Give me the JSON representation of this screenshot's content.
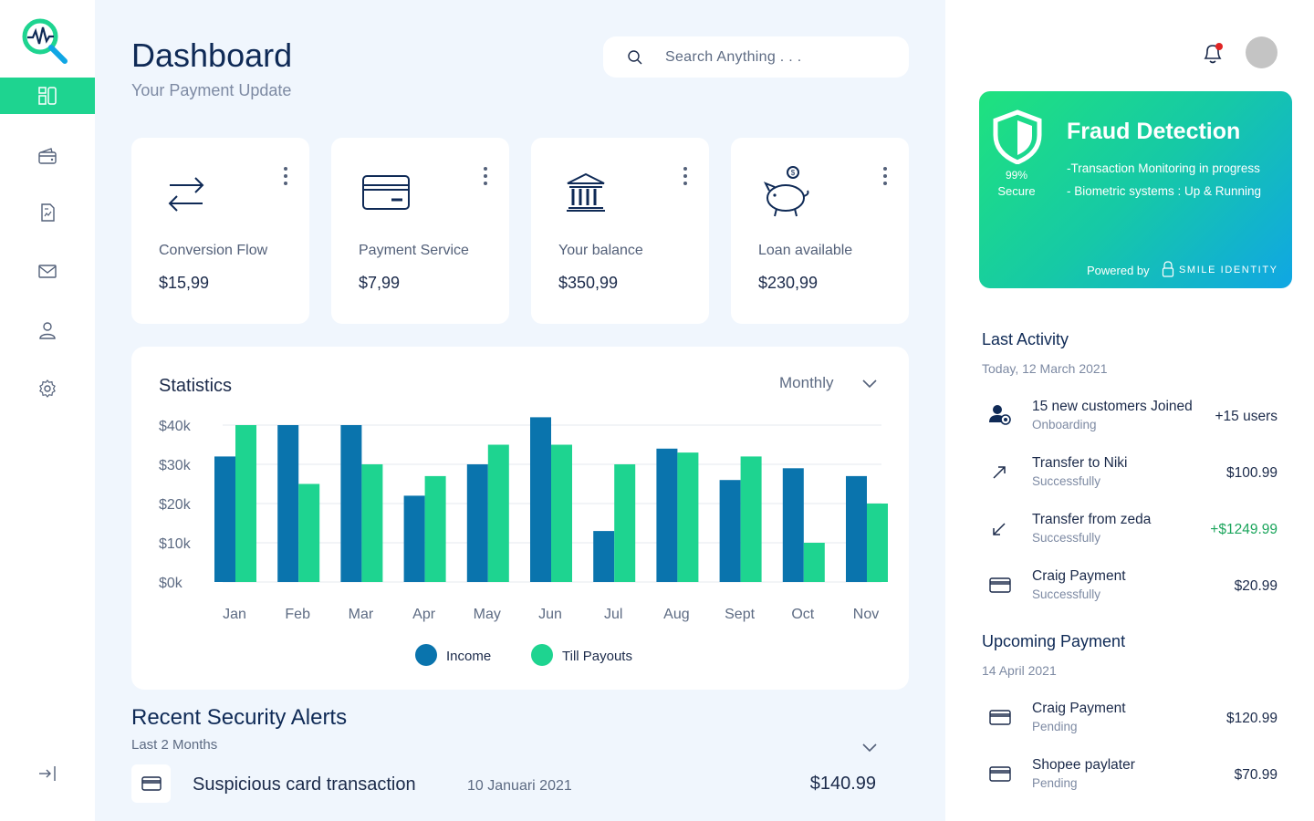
{
  "app": {
    "logo_icon": "pulse-magnifier-logo",
    "accent": "#1ed490",
    "primary_bar": "#0a74ad",
    "secondary_bar": "#1ed490"
  },
  "sidebar": {
    "items": [
      {
        "name": "dashboard",
        "icon": "dashboard-icon",
        "active": true
      },
      {
        "name": "wallet",
        "icon": "wallet-icon",
        "active": false
      },
      {
        "name": "reports",
        "icon": "document-icon",
        "active": false
      },
      {
        "name": "messages",
        "icon": "mail-icon",
        "active": false
      },
      {
        "name": "profile",
        "icon": "user-icon",
        "active": false
      },
      {
        "name": "settings",
        "icon": "gear-icon",
        "active": false
      }
    ],
    "logout_icon": "logout-icon"
  },
  "header": {
    "title": "Dashboard",
    "subtitle": "Your Payment Update",
    "search_placeholder": "Search Anything . . ."
  },
  "cards": [
    {
      "label": "Conversion Flow",
      "value": "$15,99",
      "icon": "transfer-arrows-icon"
    },
    {
      "label": "Payment Service",
      "value": "$7,99",
      "icon": "credit-card-icon"
    },
    {
      "label": "Your balance",
      "value": "$350,99",
      "icon": "bank-icon"
    },
    {
      "label": "Loan available",
      "value": "$230,99",
      "icon": "piggy-bank-icon"
    }
  ],
  "statistics": {
    "title": "Statistics",
    "period": "Monthly"
  },
  "chart_data": {
    "type": "bar",
    "categories": [
      "Jan",
      "Feb",
      "Mar",
      "Apr",
      "May",
      "Jun",
      "Jul",
      "Aug",
      "Sept",
      "Oct",
      "Nov"
    ],
    "series": [
      {
        "name": "Income",
        "color": "#0a74ad",
        "values": [
          32,
          40,
          40,
          22,
          30,
          42,
          13,
          34,
          26,
          29,
          27
        ]
      },
      {
        "name": "Till Payouts",
        "color": "#1ed490",
        "values": [
          40,
          25,
          30,
          27,
          35,
          35,
          30,
          33,
          32,
          10,
          20
        ]
      }
    ],
    "y_ticks": [
      "$0k",
      "$10k",
      "$20k",
      "$30k",
      "$40k"
    ],
    "ylim": [
      0,
      40
    ],
    "grid": true,
    "legend": "bottom-center",
    "title": "",
    "xlabel": "",
    "ylabel": ""
  },
  "alerts": {
    "title": "Recent Security Alerts",
    "subtitle": "Last 2 Months",
    "items": [
      {
        "name": "Suspicious card transaction",
        "date": "10 Januari 2021",
        "amount": "$140.99",
        "icon": "credit-card-icon"
      }
    ]
  },
  "fraud": {
    "title": "Fraud Detection",
    "percent": "99%",
    "percent_label": "Secure",
    "line1": "-Transaction Monitoring in progress",
    "line2": "- Biometric systems : Up & Running",
    "powered_by": "Powered by",
    "brand": "SMILE IDENTITY"
  },
  "last_activity": {
    "title": "Last Activity",
    "date": "Today, 12 March 2021",
    "items": [
      {
        "title": "15 new customers Joined",
        "sub": "Onboarding",
        "amount": "+15 users",
        "icon": "users-icon",
        "positive": false
      },
      {
        "title": "Transfer to Niki",
        "sub": "Successfully",
        "amount": "$100.99",
        "icon": "arrow-up-right-icon",
        "positive": false
      },
      {
        "title": "Transfer from zeda",
        "sub": "Successfully",
        "amount": "+$1249.99",
        "icon": "arrow-down-left-icon",
        "positive": true
      },
      {
        "title": "Craig Payment",
        "sub": "Successfully",
        "amount": "$20.99",
        "icon": "credit-card-icon",
        "positive": false
      }
    ]
  },
  "upcoming": {
    "title": "Upcoming Payment",
    "date": "14 April 2021",
    "items": [
      {
        "title": "Craig Payment",
        "sub": "Pending",
        "amount": "$120.99",
        "icon": "credit-card-icon"
      },
      {
        "title": "Shopee paylater",
        "sub": "Pending",
        "amount": "$70.99",
        "icon": "credit-card-icon"
      }
    ]
  }
}
